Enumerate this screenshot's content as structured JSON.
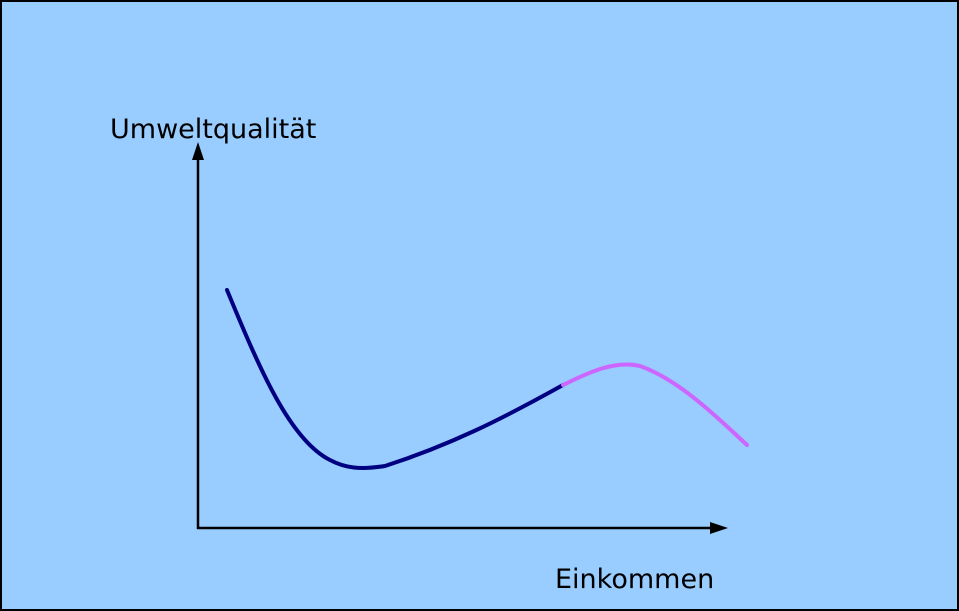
{
  "y_axis_label": "Umweltqualität",
  "x_axis_label": "Einkommen"
}
